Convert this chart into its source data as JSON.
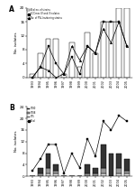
{
  "years": [
    1993,
    1994,
    1995,
    1996,
    1997,
    1998,
    1999,
    2000,
    2001,
    2002,
    2003,
    2004,
    2005
  ],
  "panel_A": {
    "total_strains": [
      1,
      7,
      11,
      11,
      1,
      10,
      3,
      13,
      7,
      16,
      16,
      20,
      20
    ],
    "sccmec_iv_v": [
      0,
      3,
      9,
      4,
      1,
      6,
      1,
      9,
      7,
      16,
      16,
      16,
      9
    ],
    "pvl_strains": [
      0,
      3,
      2,
      0,
      1,
      9,
      5,
      9,
      7,
      14,
      10,
      16,
      9
    ],
    "ylabel": "No. isolates",
    "ylim": [
      0,
      20
    ],
    "yticks": [
      0,
      4,
      8,
      12,
      16,
      20
    ]
  },
  "panel_B": {
    "st80": [
      0,
      2,
      5,
      2,
      0,
      0,
      0,
      3,
      2,
      8,
      8,
      5,
      4
    ],
    "st88": [
      0,
      1,
      2,
      1,
      0,
      0,
      0,
      1,
      1,
      2,
      0,
      2,
      1
    ],
    "st5": [
      0,
      0,
      1,
      1,
      0,
      0,
      0,
      0,
      0,
      1,
      0,
      1,
      1
    ],
    "total": [
      2,
      6,
      11,
      11,
      1,
      8,
      3,
      13,
      7,
      19,
      16,
      21,
      19
    ],
    "ylabel": "No. isolates",
    "ylim": [
      0,
      24
    ],
    "yticks": [
      0,
      4,
      8,
      12,
      16,
      20,
      24
    ]
  },
  "colors": {
    "st80": "#333333",
    "st88": "#999999",
    "st5": "#dddddd",
    "bar_edge": "#000000",
    "line": "#000000",
    "bar_total_A": "#ffffff"
  },
  "label_A": "A",
  "label_B": "B",
  "xlabels": [
    "1993",
    "1994",
    "1995",
    "1996",
    "1997",
    "1998",
    "1999",
    "2000",
    "2001",
    "2002",
    "2003",
    "2004",
    "2005"
  ]
}
